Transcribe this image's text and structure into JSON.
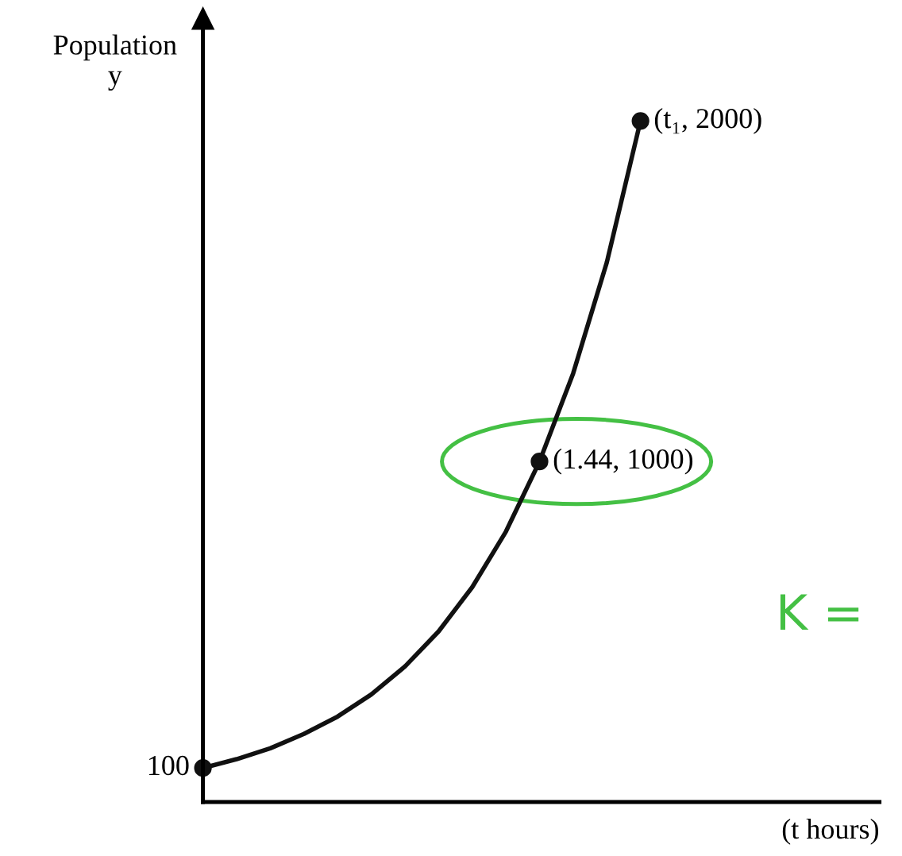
{
  "chart_data": {
    "type": "line",
    "ylabel": "Population\ny",
    "xlabel": "(t hours)",
    "categories": [
      null,
      null,
      null,
      null,
      null,
      null,
      null,
      null,
      null,
      null,
      null,
      null,
      null,
      null
    ],
    "ylim": [
      0,
      2300
    ],
    "annotations": [
      "K ="
    ],
    "series": [
      {
        "color": "#111111",
        "marker": "none",
        "line_style": "solid",
        "values": [
          100,
          126,
          158,
          200,
          251,
          316,
          398,
          501,
          631,
          794,
          1000,
          1259,
          1585,
          2000
        ],
        "value_labels": [
          "100",
          null,
          null,
          null,
          null,
          null,
          null,
          null,
          null,
          null,
          "(1.44, 1000)",
          null,
          null,
          "(t₁, 2000)"
        ]
      }
    ]
  }
}
